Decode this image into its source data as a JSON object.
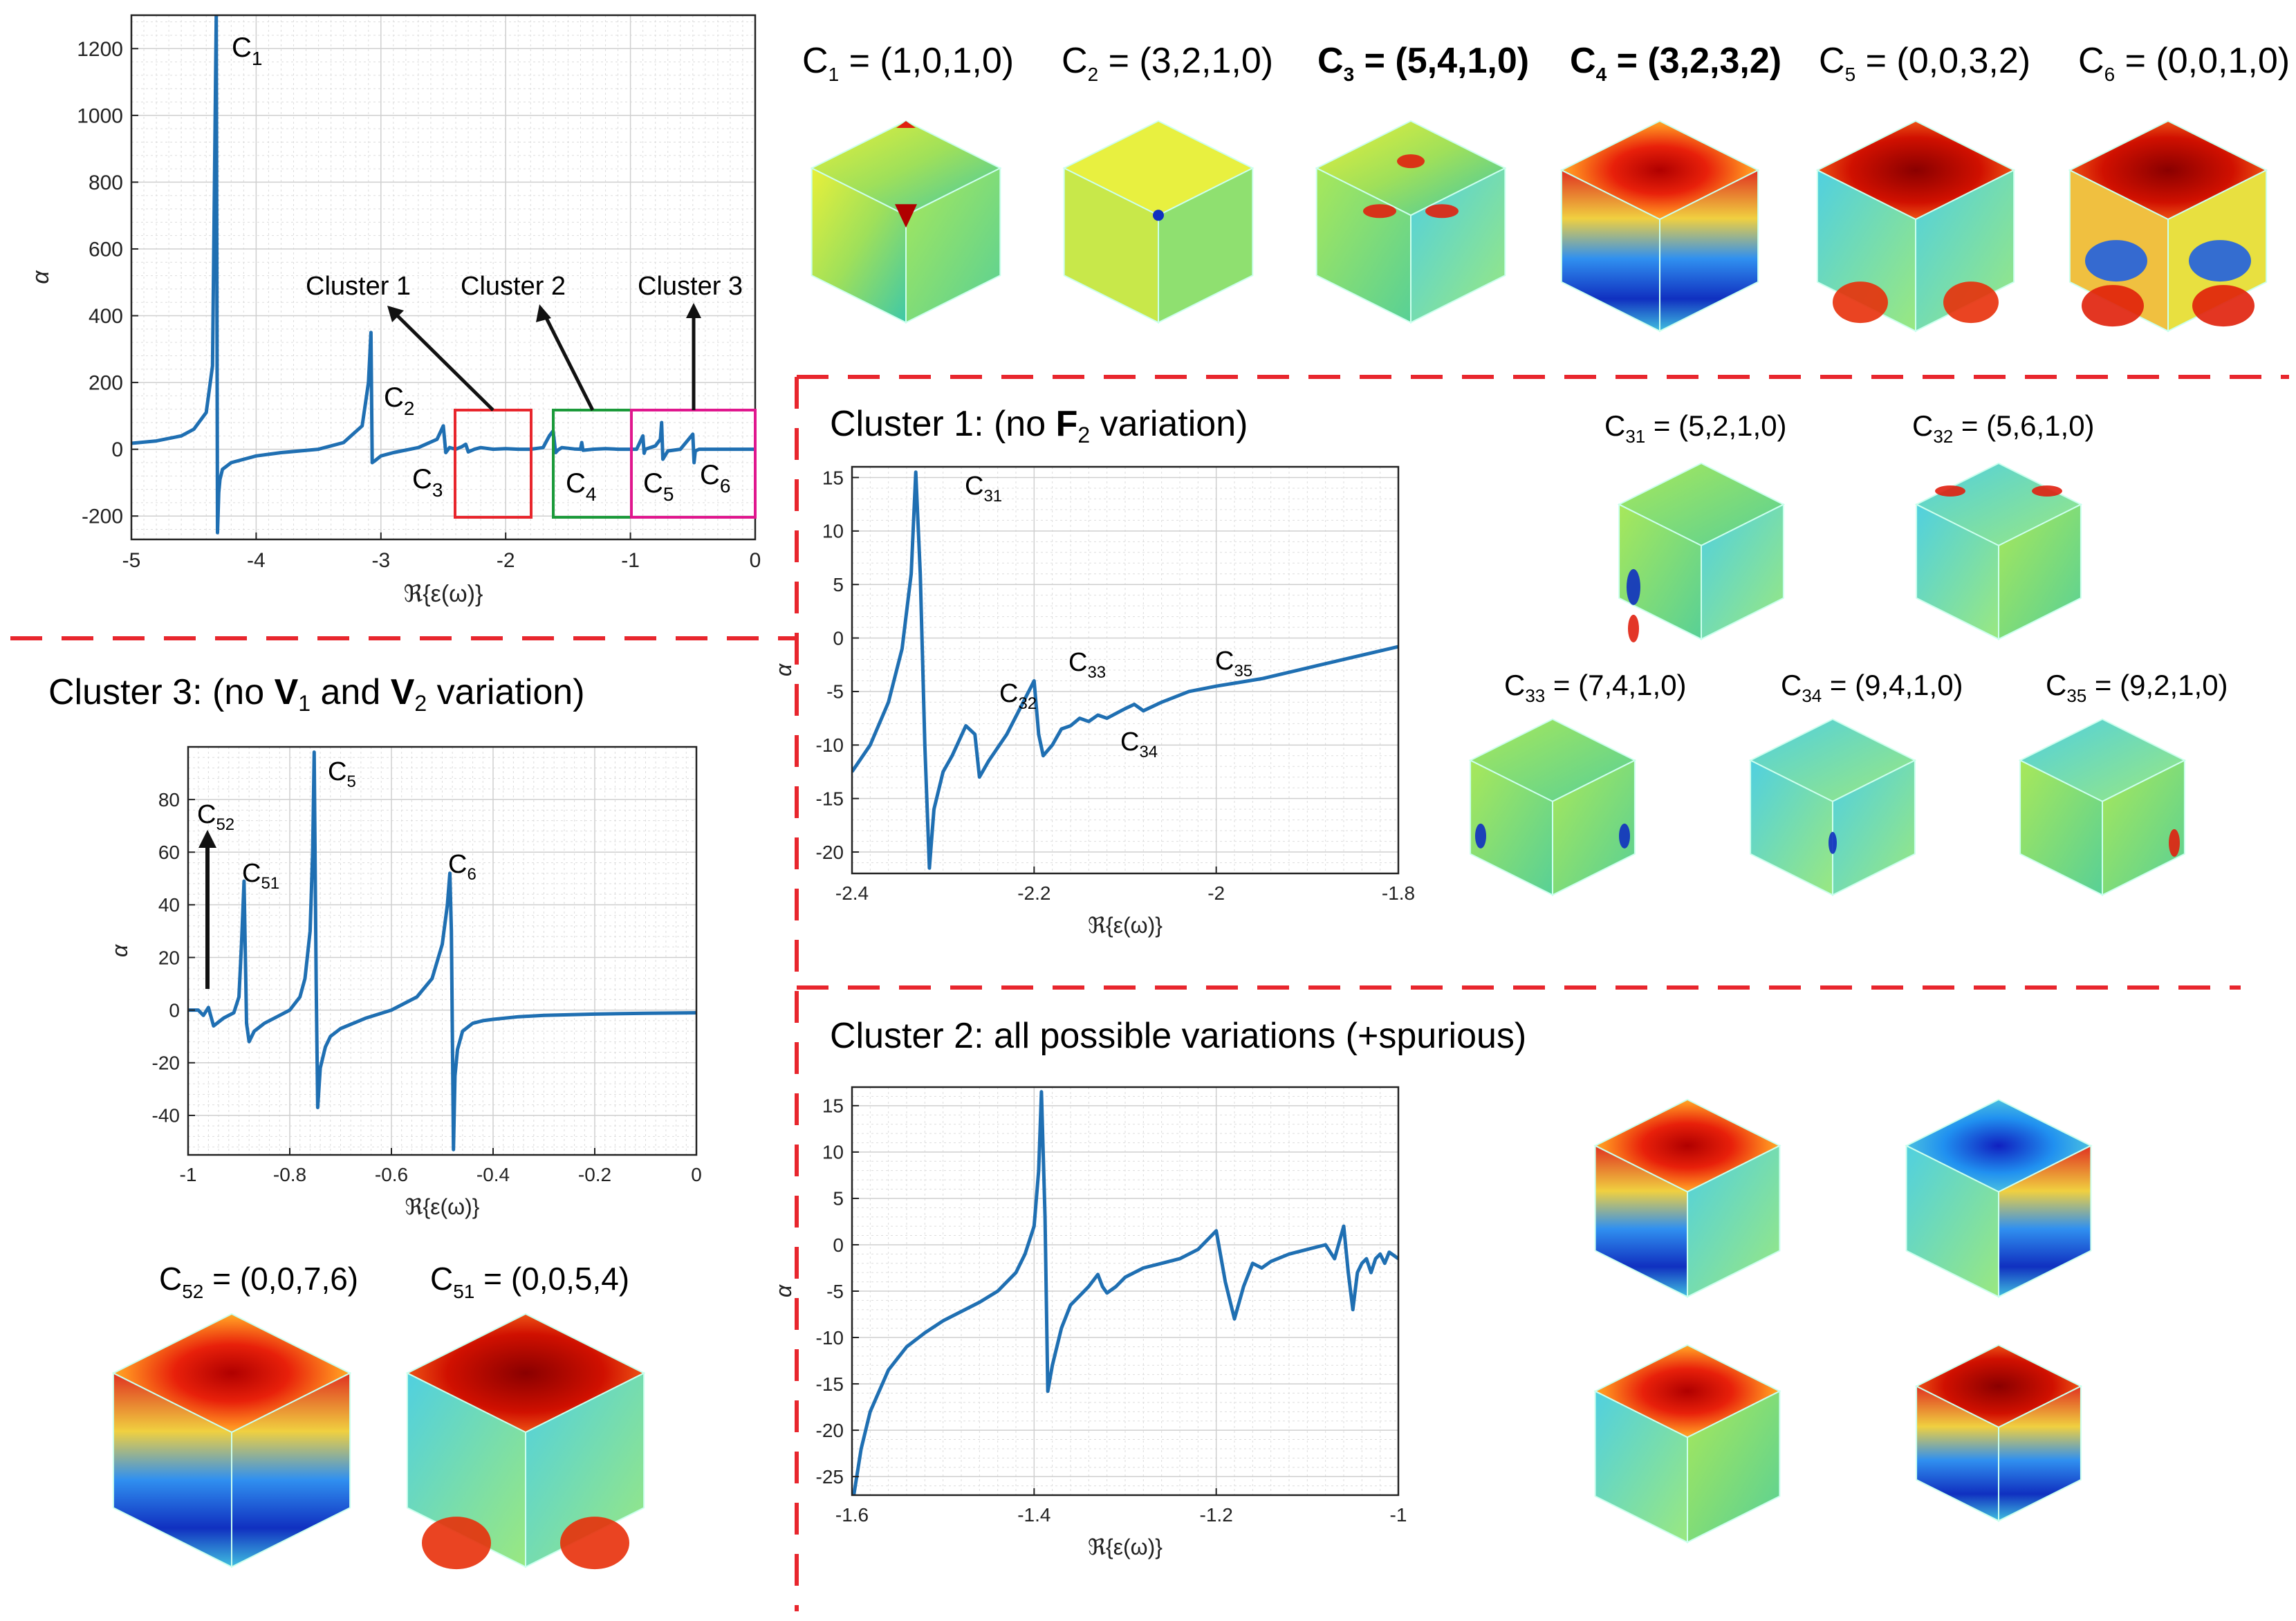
{
  "colors": {
    "line": "#1f6fb2",
    "red": "#e8262d",
    "green": "#1b9a3a",
    "magenta": "#e0178e",
    "dash": "#e8262d"
  },
  "chart_data": [
    {
      "id": "main",
      "type": "line",
      "xlabel": "ℜ{ε(ω)}",
      "ylabel": "α",
      "xlim": [
        -5,
        0
      ],
      "ylim": [
        -270,
        1300
      ],
      "xticks": [
        -5,
        -4,
        -3,
        -2,
        -1,
        0
      ],
      "xtick_labels": [
        "-5",
        "-4",
        "-3",
        "-2",
        "-1",
        "0"
      ],
      "yticks": [
        -200,
        0,
        200,
        400,
        600,
        800,
        1000,
        1200
      ],
      "ytick_labels": [
        "-200",
        "0",
        "200",
        "400",
        "600",
        "800",
        "1000",
        "1200"
      ],
      "series": [
        {
          "name": "alpha",
          "x": [
            -5,
            -4.8,
            -4.6,
            -4.5,
            -4.4,
            -4.35,
            -4.32,
            -4.31,
            -4.3,
            -4.29,
            -4.27,
            -4.2,
            -4.0,
            -3.8,
            -3.5,
            -3.3,
            -3.15,
            -3.1,
            -3.08,
            -3.07,
            -3.05,
            -3.0,
            -2.9,
            -2.7,
            -2.55,
            -2.5,
            -2.48,
            -2.45,
            -2.4,
            -2.35,
            -2.32,
            -2.3,
            -2.25,
            -2.2,
            -2.1,
            -2.0,
            -1.9,
            -1.8,
            -1.7,
            -1.65,
            -1.62,
            -1.6,
            -1.58,
            -1.55,
            -1.5,
            -1.45,
            -1.4,
            -1.39,
            -1.38,
            -1.3,
            -1.2,
            -1.1,
            -1.0,
            -0.95,
            -0.9,
            -0.89,
            -0.88,
            -0.8,
            -0.76,
            -0.75,
            -0.74,
            -0.7,
            -0.6,
            -0.5,
            -0.49,
            -0.48,
            -0.45,
            -0.4,
            -0.3,
            -0.2,
            -0.1,
            0
          ],
          "y": [
            18,
            25,
            40,
            60,
            110,
            250,
            1300,
            -250,
            -130,
            -90,
            -60,
            -40,
            -20,
            -10,
            0,
            20,
            70,
            200,
            350,
            -40,
            -35,
            -20,
            -10,
            5,
            30,
            70,
            -10,
            5,
            0,
            8,
            15,
            -8,
            0,
            5,
            0,
            2,
            0,
            0,
            5,
            40,
            55,
            -10,
            -2,
            5,
            3,
            1,
            0,
            20,
            -3,
            0,
            2,
            0,
            0,
            0,
            40,
            -12,
            0,
            10,
            30,
            80,
            -30,
            -5,
            0,
            45,
            -40,
            -5,
            0,
            0,
            0,
            0,
            0,
            0
          ]
        }
      ],
      "annotations": {
        "c1": "C",
        "c1_sub": "1",
        "c2": "C",
        "c2_sub": "2",
        "c3": "C",
        "c3_sub": "3",
        "c4": "C",
        "c4_sub": "4",
        "c5": "C",
        "c5_sub": "5",
        "c6": "C",
        "c6_sub": "6",
        "cluster1": "Cluster 1",
        "cluster2": "Cluster 2",
        "cluster3": "Cluster 3"
      }
    },
    {
      "id": "cluster1",
      "type": "line",
      "xlabel": "ℜ{ε(ω)}",
      "ylabel": "α",
      "xlim": [
        -2.4,
        -1.8
      ],
      "ylim": [
        -22,
        16
      ],
      "xticks": [
        -2.4,
        -2.2,
        -2.0,
        -1.8
      ],
      "xtick_labels": [
        "-2.4",
        "-2.2",
        "-2",
        "-1.8"
      ],
      "yticks": [
        -20,
        -15,
        -10,
        -5,
        0,
        5,
        10,
        15
      ],
      "ytick_labels": [
        "-20",
        "-15",
        "-10",
        "-5",
        "0",
        "5",
        "10",
        "15"
      ],
      "series": [
        {
          "name": "alpha",
          "x": [
            -2.4,
            -2.38,
            -2.36,
            -2.345,
            -2.335,
            -2.33,
            -2.325,
            -2.32,
            -2.315,
            -2.31,
            -2.3,
            -2.29,
            -2.275,
            -2.265,
            -2.26,
            -2.25,
            -2.23,
            -2.215,
            -2.2,
            -2.195,
            -2.19,
            -2.18,
            -2.17,
            -2.16,
            -2.15,
            -2.14,
            -2.13,
            -2.12,
            -2.1,
            -2.09,
            -2.08,
            -2.06,
            -2.03,
            -2.0,
            -1.95,
            -1.9,
            -1.85,
            -1.8
          ],
          "y": [
            -12.5,
            -10,
            -6,
            -1,
            6,
            15.5,
            6,
            -10,
            -21.5,
            -16,
            -12.5,
            -11,
            -8.2,
            -9,
            -13,
            -11.5,
            -9,
            -6.5,
            -4,
            -9,
            -11,
            -10,
            -8.5,
            -8.2,
            -7.5,
            -7.8,
            -7.2,
            -7.5,
            -6.6,
            -6.2,
            -6.8,
            -6,
            -5,
            -4.5,
            -3.8,
            -2.8,
            -1.8,
            -0.8
          ]
        }
      ],
      "annotations": {
        "c31": "C",
        "c31_sub": "31",
        "c32": "C",
        "c32_sub": "32",
        "c33": "C",
        "c33_sub": "33",
        "c34": "C",
        "c34_sub": "34",
        "c35": "C",
        "c35_sub": "35"
      }
    },
    {
      "id": "cluster2",
      "type": "line",
      "xlabel": "ℜ{ε(ω)}",
      "ylabel": "α",
      "xlim": [
        -1.6,
        -1.0
      ],
      "ylim": [
        -27,
        17
      ],
      "xticks": [
        -1.6,
        -1.4,
        -1.2,
        -1.0
      ],
      "xtick_labels": [
        "-1.6",
        "-1.4",
        "-1.2",
        "-1"
      ],
      "yticks": [
        -25,
        -20,
        -15,
        -10,
        -5,
        0,
        5,
        10,
        15
      ],
      "ytick_labels": [
        "-25",
        "-20",
        "-15",
        "-10",
        "-5",
        "0",
        "5",
        "10",
        "15"
      ],
      "series": [
        {
          "name": "alpha",
          "x": [
            -1.598,
            -1.59,
            -1.58,
            -1.56,
            -1.54,
            -1.52,
            -1.5,
            -1.48,
            -1.46,
            -1.44,
            -1.42,
            -1.41,
            -1.4,
            -1.395,
            -1.392,
            -1.388,
            -1.385,
            -1.38,
            -1.37,
            -1.36,
            -1.35,
            -1.34,
            -1.33,
            -1.325,
            -1.32,
            -1.31,
            -1.3,
            -1.28,
            -1.26,
            -1.24,
            -1.22,
            -1.2,
            -1.19,
            -1.18,
            -1.17,
            -1.16,
            -1.15,
            -1.14,
            -1.12,
            -1.1,
            -1.08,
            -1.07,
            -1.06,
            -1.055,
            -1.05,
            -1.045,
            -1.04,
            -1.035,
            -1.03,
            -1.025,
            -1.02,
            -1.015,
            -1.01,
            -1.0
          ],
          "y": [
            -27,
            -22,
            -18,
            -13.5,
            -11,
            -9.5,
            -8.2,
            -7.2,
            -6.2,
            -5,
            -3,
            -1,
            2,
            8,
            16.5,
            3,
            -15.8,
            -13,
            -9,
            -6.5,
            -5.5,
            -4.5,
            -3.2,
            -4.5,
            -5.2,
            -4.5,
            -3.5,
            -2.5,
            -2,
            -1.5,
            -0.5,
            1.5,
            -4,
            -8,
            -4.5,
            -2,
            -2.5,
            -1.8,
            -1,
            -0.5,
            0,
            -1.5,
            2,
            -3,
            -7,
            -3,
            -2,
            -1.5,
            -3,
            -1.5,
            -1,
            -2,
            -0.8,
            -1.5
          ]
        }
      ]
    },
    {
      "id": "cluster3",
      "type": "line",
      "xlabel": "ℜ{ε(ω)}",
      "ylabel": "α",
      "xlim": [
        -1,
        0
      ],
      "ylim": [
        -55,
        100
      ],
      "xticks": [
        -1,
        -0.8,
        -0.6,
        -0.4,
        -0.2,
        0
      ],
      "xtick_labels": [
        "-1",
        "-0.8",
        "-0.6",
        "-0.4",
        "-0.2",
        "0"
      ],
      "yticks": [
        -40,
        -20,
        0,
        20,
        40,
        60,
        80
      ],
      "ytick_labels": [
        "-40",
        "-20",
        "0",
        "20",
        "40",
        "60",
        "80"
      ],
      "series": [
        {
          "name": "alpha",
          "x": [
            -1,
            -0.98,
            -0.97,
            -0.96,
            -0.95,
            -0.93,
            -0.91,
            -0.9,
            -0.895,
            -0.89,
            -0.885,
            -0.88,
            -0.87,
            -0.85,
            -0.82,
            -0.8,
            -0.78,
            -0.77,
            -0.76,
            -0.755,
            -0.752,
            -0.748,
            -0.745,
            -0.74,
            -0.73,
            -0.72,
            -0.7,
            -0.65,
            -0.6,
            -0.55,
            -0.52,
            -0.5,
            -0.49,
            -0.485,
            -0.482,
            -0.478,
            -0.475,
            -0.47,
            -0.46,
            -0.44,
            -0.42,
            -0.4,
            -0.35,
            -0.3,
            -0.2,
            -0.1,
            0
          ],
          "y": [
            0,
            0,
            -2,
            1,
            -6,
            -3,
            -1,
            5,
            25,
            49,
            -5,
            -12,
            -8,
            -5,
            -2,
            0,
            5,
            12,
            30,
            60,
            98,
            10,
            -37,
            -22,
            -14,
            -10,
            -7,
            -3,
            0,
            5,
            12,
            25,
            40,
            52,
            30,
            -53,
            -25,
            -15,
            -8,
            -5,
            -4,
            -3.5,
            -2.5,
            -2,
            -1.5,
            -1.2,
            -1
          ]
        }
      ],
      "annotations": {
        "c5": "C",
        "c5_sub": "5",
        "c6": "C",
        "c6_sub": "6",
        "c51": "C",
        "c51_sub": "51",
        "c52": "C",
        "c52_sub": "52"
      }
    }
  ],
  "mode_labels": [
    {
      "c": "C",
      "sub": "1",
      "eq": " = (1,0,1,0)",
      "highlight": false
    },
    {
      "c": "C",
      "sub": "2",
      "eq": " = (3,2,1,0)",
      "highlight": false
    },
    {
      "c": "C",
      "sub": "3",
      "eq": " = (5,4,1,0)",
      "highlight": true
    },
    {
      "c": "C",
      "sub": "4",
      "eq": " = (3,2,3,2)",
      "highlight": true
    },
    {
      "c": "C",
      "sub": "5",
      "eq": " = (0,0,3,2)",
      "highlight": false
    },
    {
      "c": "C",
      "sub": "6",
      "eq": " = (0,0,1,0)",
      "highlight": false
    }
  ],
  "cluster1_labels": [
    {
      "c": "C",
      "sub": "31",
      "eq": " = (5,2,1,0)"
    },
    {
      "c": "C",
      "sub": "32",
      "eq": " = (5,6,1,0)"
    },
    {
      "c": "C",
      "sub": "33",
      "eq": " = (7,4,1,0)"
    },
    {
      "c": "C",
      "sub": "34",
      "eq": " = (9,4,1,0)"
    },
    {
      "c": "C",
      "sub": "35",
      "eq": " = (9,2,1,0)"
    }
  ],
  "cluster3_labels": [
    {
      "c": "C",
      "sub": "52",
      "eq": " = (0,0,7,6)"
    },
    {
      "c": "C",
      "sub": "51",
      "eq": " = (0,0,5,4)"
    }
  ],
  "titles": {
    "cluster1": {
      "pre": "Cluster 1: (no ",
      "bold": "F",
      "sub": "2",
      "post": " variation)"
    },
    "cluster2": "Cluster 2: all possible variations (+spurious)",
    "cluster3": {
      "pre": "Cluster 3: (no ",
      "b1": "V",
      "s1": "1",
      "mid": " and ",
      "b2": "V",
      "s2": "2",
      "post": " variation)"
    }
  }
}
